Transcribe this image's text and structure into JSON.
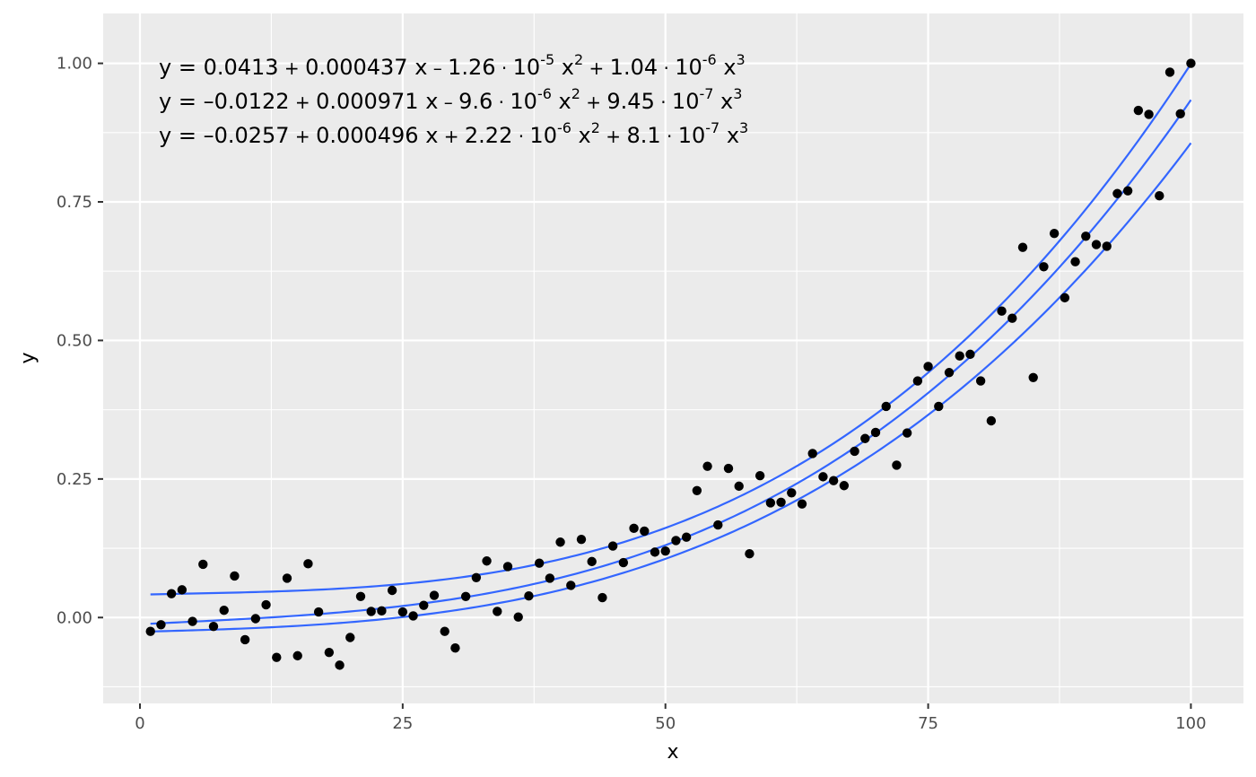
{
  "chart_data": {
    "type": "scatter",
    "xlabel": "x",
    "ylabel": "y",
    "xlim": [
      -3.5,
      105
    ],
    "ylim": [
      -0.155,
      1.09
    ],
    "x_ticks": [
      0,
      25,
      50,
      75,
      100
    ],
    "x_tick_labels": [
      "0",
      "25",
      "50",
      "75",
      "100"
    ],
    "y_ticks": [
      0.0,
      0.25,
      0.5,
      0.75,
      1.0
    ],
    "y_tick_labels": [
      "0.00",
      "0.25",
      "0.50",
      "0.75",
      "1.00"
    ],
    "grid": true,
    "colors": {
      "panel": "#ebebeb",
      "grid": "#ffffff",
      "points": "#000000",
      "lines": "#3366ff"
    },
    "points": [
      [
        1,
        -0.025
      ],
      [
        2,
        -0.013
      ],
      [
        3,
        0.043
      ],
      [
        4,
        0.05
      ],
      [
        5,
        -0.007
      ],
      [
        6,
        0.096
      ],
      [
        7,
        -0.016
      ],
      [
        8,
        0.013
      ],
      [
        9,
        0.075
      ],
      [
        10,
        -0.04
      ],
      [
        11,
        -0.002
      ],
      [
        12,
        0.023
      ],
      [
        13,
        -0.072
      ],
      [
        14,
        0.071
      ],
      [
        15,
        -0.069
      ],
      [
        16,
        0.097
      ],
      [
        17,
        0.01
      ],
      [
        18,
        -0.063
      ],
      [
        19,
        -0.086
      ],
      [
        20,
        -0.036
      ],
      [
        21,
        0.038
      ],
      [
        22,
        0.011
      ],
      [
        23,
        0.012
      ],
      [
        24,
        0.049
      ],
      [
        25,
        0.01
      ],
      [
        26,
        0.003
      ],
      [
        27,
        0.022
      ],
      [
        28,
        0.04
      ],
      [
        29,
        -0.025
      ],
      [
        30,
        -0.055
      ],
      [
        31,
        0.038
      ],
      [
        32,
        0.072
      ],
      [
        33,
        0.102
      ],
      [
        34,
        0.011
      ],
      [
        35,
        0.092
      ],
      [
        36,
        0.001
      ],
      [
        37,
        0.039
      ],
      [
        38,
        0.098
      ],
      [
        39,
        0.071
      ],
      [
        40,
        0.136
      ],
      [
        41,
        0.058
      ],
      [
        42,
        0.141
      ],
      [
        43,
        0.101
      ],
      [
        44,
        0.036
      ],
      [
        45,
        0.129
      ],
      [
        46,
        0.099
      ],
      [
        47,
        0.161
      ],
      [
        48,
        0.156
      ],
      [
        49,
        0.118
      ],
      [
        50,
        0.12
      ],
      [
        51,
        0.139
      ],
      [
        52,
        0.145
      ],
      [
        53,
        0.229
      ],
      [
        54,
        0.273
      ],
      [
        55,
        0.167
      ],
      [
        56,
        0.269
      ],
      [
        57,
        0.237
      ],
      [
        58,
        0.115
      ],
      [
        59,
        0.256
      ],
      [
        60,
        0.207
      ],
      [
        61,
        0.208
      ],
      [
        62,
        0.225
      ],
      [
        63,
        0.205
      ],
      [
        64,
        0.296
      ],
      [
        65,
        0.254
      ],
      [
        66,
        0.247
      ],
      [
        67,
        0.238
      ],
      [
        68,
        0.3
      ],
      [
        69,
        0.323
      ],
      [
        70,
        0.334
      ],
      [
        71,
        0.381
      ],
      [
        72,
        0.275
      ],
      [
        73,
        0.333
      ],
      [
        74,
        0.427
      ],
      [
        75,
        0.453
      ],
      [
        76,
        0.381
      ],
      [
        77,
        0.442
      ],
      [
        78,
        0.472
      ],
      [
        79,
        0.475
      ],
      [
        80,
        0.427
      ],
      [
        81,
        0.355
      ],
      [
        82,
        0.553
      ],
      [
        83,
        0.54
      ],
      [
        84,
        0.668
      ],
      [
        85,
        0.433
      ],
      [
        86,
        0.633
      ],
      [
        87,
        0.693
      ],
      [
        88,
        0.577
      ],
      [
        89,
        0.642
      ],
      [
        90,
        0.688
      ],
      [
        91,
        0.673
      ],
      [
        92,
        0.67
      ],
      [
        93,
        0.765
      ],
      [
        94,
        0.77
      ],
      [
        95,
        0.915
      ],
      [
        96,
        0.908
      ],
      [
        97,
        0.761
      ],
      [
        98,
        0.984
      ],
      [
        99,
        0.909
      ],
      [
        100,
        1.0
      ]
    ],
    "series": [
      {
        "coefficients": [
          0.0413,
          0.000437,
          -1.26e-05,
          1.04e-06
        ],
        "x_range": [
          1,
          100
        ]
      },
      {
        "coefficients": [
          -0.0122,
          0.000971,
          -9.6e-06,
          9.45e-07
        ],
        "x_range": [
          1,
          100
        ]
      },
      {
        "coefficients": [
          -0.0257,
          0.000496,
          2.22e-06,
          8.1e-07
        ],
        "x_range": [
          1,
          100
        ]
      }
    ],
    "annotations": [
      {
        "text": "y = 0.0413 + 0.000437 x − 1.26 · 10⁻⁵ x² + 1.04 · 10⁻⁶ x³",
        "parts": {
          "y": "y",
          "eq": "=",
          "c0": "0.0413",
          "op1": "+",
          "c1": "0.000437",
          "x1": "x",
          "op2": "–",
          "c2": "1.26",
          "dot2": "·",
          "ten2": "10",
          "exp2": "-5",
          "x2": "x",
          "pow2": "2",
          "op3": "+",
          "c3": "1.04",
          "dot3": "·",
          "ten3": "10",
          "exp3": "-6",
          "x3": "x",
          "pow3": "3"
        }
      },
      {
        "text": "y = −0.0122 + 0.000971 x − 9.6 · 10⁻⁶ x² + 9.45 · 10⁻⁷ x³",
        "parts": {
          "y": "y",
          "eq": "=",
          "c0": "–0.0122",
          "op1": "+",
          "c1": "0.000971",
          "x1": "x",
          "op2": "–",
          "c2": "9.6",
          "dot2": "·",
          "ten2": "10",
          "exp2": "-6",
          "x2": "x",
          "pow2": "2",
          "op3": "+",
          "c3": "9.45",
          "dot3": "·",
          "ten3": "10",
          "exp3": "-7",
          "x3": "x",
          "pow3": "3"
        }
      },
      {
        "text": "y = −0.0257 + 0.000496 x + 2.22 · 10⁻⁶ x² + 8.1 · 10⁻⁷ x³",
        "parts": {
          "y": "y",
          "eq": "=",
          "c0": "–0.0257",
          "op1": "+",
          "c1": "0.000496",
          "x1": "x",
          "op2": "+",
          "c2": "2.22",
          "dot2": "·",
          "ten2": "10",
          "exp2": "-6",
          "x2": "x",
          "pow2": "2",
          "op3": "+",
          "c3": "8.1",
          "dot3": "·",
          "ten3": "10",
          "exp3": "-7",
          "x3": "x",
          "pow3": "3"
        }
      }
    ]
  }
}
